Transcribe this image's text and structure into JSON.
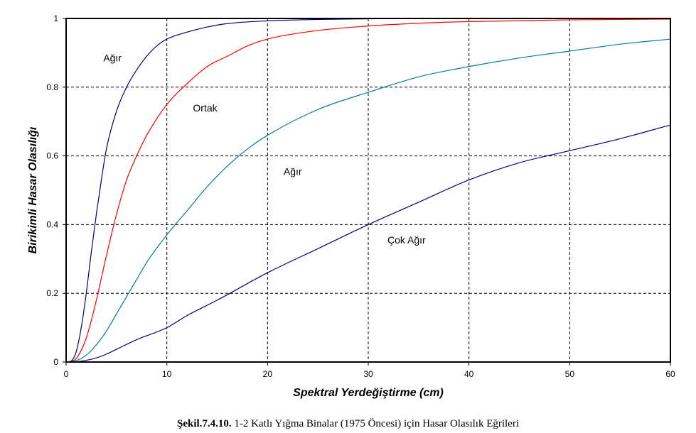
{
  "chart_data": {
    "type": "line",
    "xlabel": "Spektral Yerdeğiştirme (cm)",
    "ylabel": "Birikimli Hasar Olasılığı",
    "xlim": [
      0,
      60
    ],
    "ylim": [
      0,
      1
    ],
    "xticks": [
      0,
      10,
      20,
      30,
      40,
      50,
      60
    ],
    "yticks": [
      0,
      0.2,
      0.4,
      0.6,
      0.8,
      1
    ],
    "ytick_labels": [
      "0",
      "0.2",
      "0.4",
      "0.6",
      "0.8",
      "1"
    ],
    "grid": true,
    "series": [
      {
        "color": "#000080",
        "x": [
          0,
          0.5,
          1,
          1.5,
          2,
          2.5,
          3,
          3.5,
          4,
          5,
          6,
          7,
          8,
          9,
          10,
          12,
          14,
          16,
          20,
          25,
          30,
          40,
          50,
          60
        ],
        "y": [
          0,
          0.003,
          0.03,
          0.1,
          0.2,
          0.32,
          0.43,
          0.53,
          0.62,
          0.73,
          0.8,
          0.85,
          0.89,
          0.92,
          0.94,
          0.96,
          0.975,
          0.985,
          0.993,
          0.997,
          0.999,
          1,
          1,
          1
        ]
      },
      {
        "color": "#ff0000",
        "x": [
          0,
          0.5,
          1,
          2,
          3,
          4,
          5,
          6,
          7,
          8,
          10,
          12,
          14,
          16,
          18,
          20,
          25,
          30,
          35,
          40,
          50,
          60
        ],
        "y": [
          0,
          0.002,
          0.01,
          0.07,
          0.18,
          0.31,
          0.43,
          0.53,
          0.6,
          0.66,
          0.75,
          0.81,
          0.86,
          0.89,
          0.92,
          0.94,
          0.965,
          0.978,
          0.986,
          0.991,
          0.996,
          0.998
        ]
      },
      {
        "color": "#008080",
        "x": [
          0,
          1,
          2,
          3,
          4,
          5,
          6,
          7,
          8,
          10,
          12,
          14,
          16,
          18,
          20,
          25,
          30,
          35,
          40,
          45,
          50,
          55,
          60
        ],
        "y": [
          0,
          0.004,
          0.02,
          0.05,
          0.09,
          0.14,
          0.19,
          0.24,
          0.29,
          0.37,
          0.44,
          0.51,
          0.57,
          0.62,
          0.66,
          0.735,
          0.785,
          0.83,
          0.86,
          0.885,
          0.905,
          0.925,
          0.94
        ]
      },
      {
        "color": "#000080",
        "x": [
          0,
          1,
          2,
          3,
          4,
          5,
          7,
          10,
          12,
          15,
          20,
          25,
          30,
          35,
          40,
          45,
          50,
          55,
          60
        ],
        "y": [
          0,
          0.001,
          0.005,
          0.012,
          0.023,
          0.037,
          0.065,
          0.1,
          0.135,
          0.18,
          0.26,
          0.33,
          0.4,
          0.465,
          0.53,
          0.58,
          0.615,
          0.65,
          0.69
        ]
      }
    ],
    "annotations": [
      {
        "text": "Ağır",
        "x": 4.6,
        "y": 0.885
      },
      {
        "text": "Ortak",
        "x": 13.8,
        "y": 0.74
      },
      {
        "text": "Ağır",
        "x": 22.5,
        "y": 0.555
      },
      {
        "text": "Çok Ağır",
        "x": 33.8,
        "y": 0.355
      }
    ]
  },
  "caption": {
    "bold": "Şekil.7.4.10.",
    "text": " 1-2 Katlı Yığma Binalar (1975 Öncesi) için Hasar Olasılık Eğrileri"
  }
}
